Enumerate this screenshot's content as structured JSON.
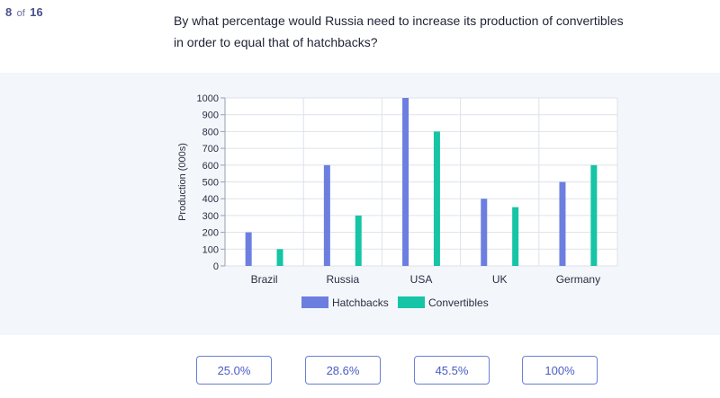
{
  "counter": {
    "current": "8",
    "of_label": "of",
    "total": "16"
  },
  "question": "By what percentage would Russia need to increase its production of convertibles in order to equal that of hatchbacks?",
  "answers": [
    "25.0%",
    "28.6%",
    "45.5%",
    "100%"
  ],
  "colors": {
    "hatchbacks": "#6c7fe0",
    "convertibles": "#16c4a6",
    "accent": "#6b7fd4"
  },
  "chart_data": {
    "type": "bar",
    "categories": [
      "Brazil",
      "Russia",
      "USA",
      "UK",
      "Germany"
    ],
    "series": [
      {
        "name": "Hatchbacks",
        "values": [
          200,
          600,
          1000,
          400,
          500
        ]
      },
      {
        "name": "Convertibles",
        "values": [
          100,
          300,
          800,
          350,
          600
        ]
      }
    ],
    "ylabel": "Production (000s)",
    "yticks": [
      0,
      100,
      200,
      300,
      400,
      500,
      600,
      700,
      800,
      900,
      1000
    ],
    "ylim": [
      0,
      1000
    ],
    "grid": true,
    "legend_position": "bottom"
  }
}
